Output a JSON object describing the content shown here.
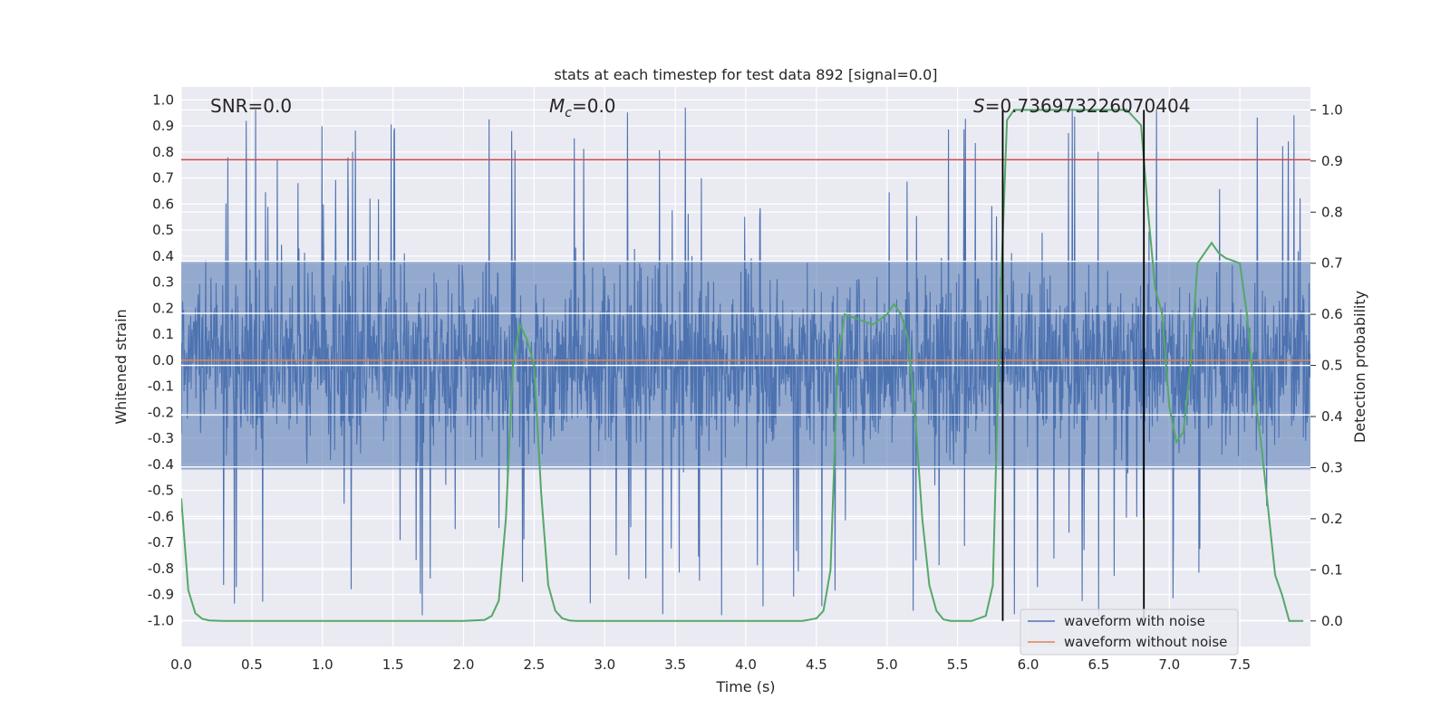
{
  "chart_data": {
    "type": "line",
    "title": "stats at each timestep for test data 892 [signal=0.0]",
    "xlabel": "Time (s)",
    "ylabel": "Whitened strain",
    "y2label": "Detection probability",
    "xlim": [
      0.0,
      8.0
    ],
    "ylim": [
      -1.1,
      1.05
    ],
    "y2lim": [
      -0.05,
      1.045
    ],
    "xticks": [
      "0.0",
      "0.5",
      "1.0",
      "1.5",
      "2.0",
      "2.5",
      "3.0",
      "3.5",
      "4.0",
      "4.5",
      "5.0",
      "5.5",
      "6.0",
      "6.5",
      "7.0",
      "7.5"
    ],
    "yticks": [
      "-1.0",
      "-0.9",
      "-0.8",
      "-0.7",
      "-0.6",
      "-0.5",
      "-0.4",
      "-0.3",
      "-0.2",
      "-0.1",
      "0.0",
      "0.1",
      "0.2",
      "0.3",
      "0.4",
      "0.5",
      "0.6",
      "0.7",
      "0.8",
      "0.9",
      "1.0"
    ],
    "y2ticks": [
      "0.0",
      "0.1",
      "0.2",
      "0.3",
      "0.4",
      "0.5",
      "0.6",
      "0.7",
      "0.8",
      "0.9",
      "1.0"
    ],
    "grid": true,
    "legend_position": "lower-right",
    "annotations": {
      "snr": "SNR=0.0",
      "mc_symbol": "M",
      "mc_subscript": "c",
      "mc_value": "=0.0",
      "s_symbol": "S",
      "s_value": "=0.736973226070404"
    },
    "series": [
      {
        "name": "waveform with noise",
        "color": "#4c72b0",
        "axis": "left",
        "noise_envelope_typical": [
          -0.42,
          0.38
        ],
        "noise_extreme": [
          -1.0,
          0.98
        ]
      },
      {
        "name": "waveform without noise",
        "color": "#dd8452",
        "axis": "left",
        "x": [
          0.0,
          8.0
        ],
        "y": [
          0.0,
          0.0
        ]
      },
      {
        "name": "Detection probability",
        "color": "#55a868",
        "axis": "right",
        "x": [
          0.0,
          0.05,
          0.1,
          0.15,
          0.2,
          0.3,
          0.5,
          1.0,
          1.5,
          2.0,
          2.15,
          2.2,
          2.25,
          2.3,
          2.35,
          2.4,
          2.45,
          2.5,
          2.55,
          2.6,
          2.65,
          2.7,
          2.75,
          2.8,
          2.85,
          3.0,
          3.5,
          4.0,
          4.4,
          4.5,
          4.55,
          4.6,
          4.65,
          4.7,
          4.8,
          4.9,
          5.0,
          5.05,
          5.1,
          5.15,
          5.2,
          5.25,
          5.3,
          5.35,
          5.4,
          5.45,
          5.5,
          5.6,
          5.7,
          5.75,
          5.8,
          5.85,
          5.9,
          6.0,
          6.2,
          6.5,
          6.7,
          6.8,
          6.85,
          6.9,
          6.95,
          7.0,
          7.05,
          7.1,
          7.15,
          7.2,
          7.3,
          7.35,
          7.4,
          7.5,
          7.55,
          7.6,
          7.65,
          7.7,
          7.75,
          7.8,
          7.85,
          7.9,
          7.95
        ],
        "y": [
          0.24,
          0.06,
          0.015,
          0.004,
          0.001,
          0.0,
          0.0,
          0.0,
          0.0,
          0.0,
          0.002,
          0.01,
          0.04,
          0.2,
          0.5,
          0.58,
          0.55,
          0.5,
          0.25,
          0.07,
          0.02,
          0.005,
          0.001,
          0.0,
          0.0,
          0.0,
          0.0,
          0.0,
          0.0,
          0.005,
          0.02,
          0.1,
          0.5,
          0.6,
          0.59,
          0.58,
          0.6,
          0.62,
          0.6,
          0.55,
          0.4,
          0.2,
          0.07,
          0.02,
          0.003,
          0.0,
          0.0,
          0.0,
          0.01,
          0.07,
          0.6,
          0.98,
          1.0,
          1.0,
          1.0,
          1.0,
          1.0,
          0.97,
          0.8,
          0.65,
          0.6,
          0.42,
          0.35,
          0.37,
          0.5,
          0.7,
          0.74,
          0.72,
          0.71,
          0.7,
          0.6,
          0.45,
          0.35,
          0.22,
          0.09,
          0.05,
          0.0,
          0.0,
          0.0
        ]
      }
    ],
    "hlines": [
      {
        "axis": "left",
        "y": 0.77,
        "color": "#c44e52"
      }
    ],
    "vlines": [
      {
        "x": 5.82,
        "color": "#000000"
      },
      {
        "x": 6.82,
        "color": "#000000"
      }
    ]
  }
}
